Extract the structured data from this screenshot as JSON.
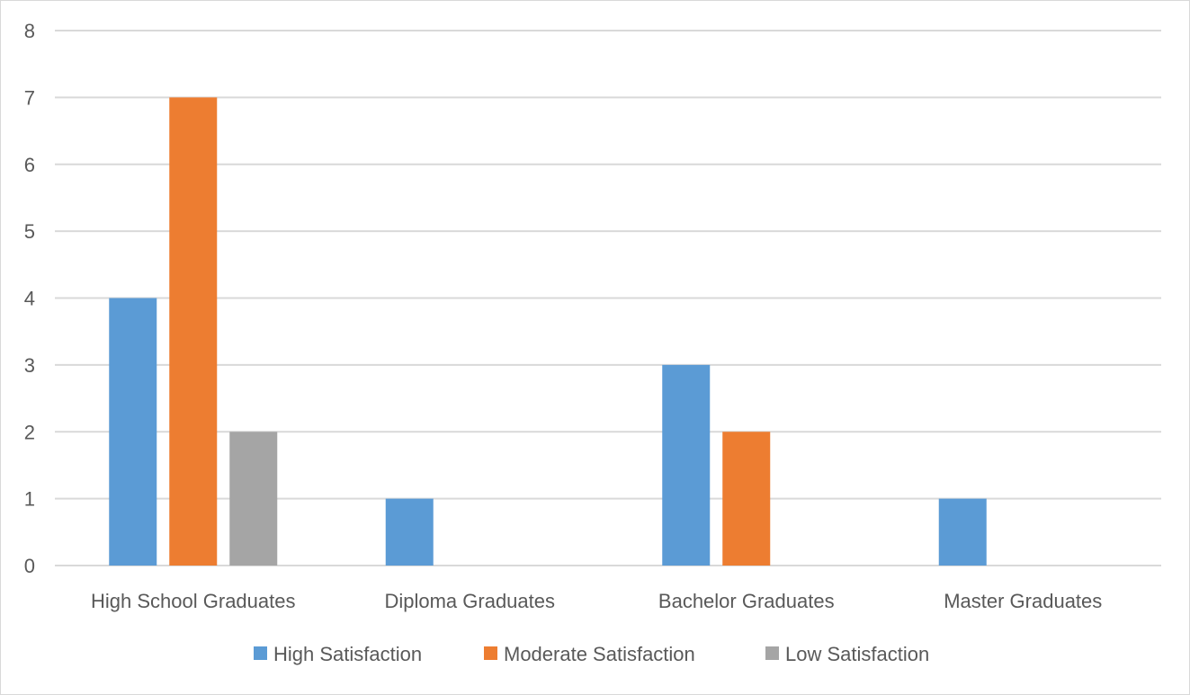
{
  "chart_data": {
    "type": "bar",
    "categories": [
      "High School Graduates",
      "Diploma Graduates",
      "Bachelor Graduates",
      "Master Graduates"
    ],
    "series": [
      {
        "name": "High Satisfaction",
        "values": [
          4,
          1,
          3,
          1
        ],
        "color": "#5b9bd5"
      },
      {
        "name": "Moderate Satisfaction",
        "values": [
          7,
          0,
          2,
          0
        ],
        "color": "#ed7d31"
      },
      {
        "name": "Low Satisfaction",
        "values": [
          2,
          0,
          0,
          0
        ],
        "color": "#a5a5a5"
      }
    ],
    "ylim": [
      0,
      8
    ],
    "yticks": [
      0,
      1,
      2,
      3,
      4,
      5,
      6,
      7,
      8
    ],
    "grid": true,
    "legend_position": "bottom",
    "gridline_color": "#d9d9d9",
    "text_color": "#595959"
  }
}
